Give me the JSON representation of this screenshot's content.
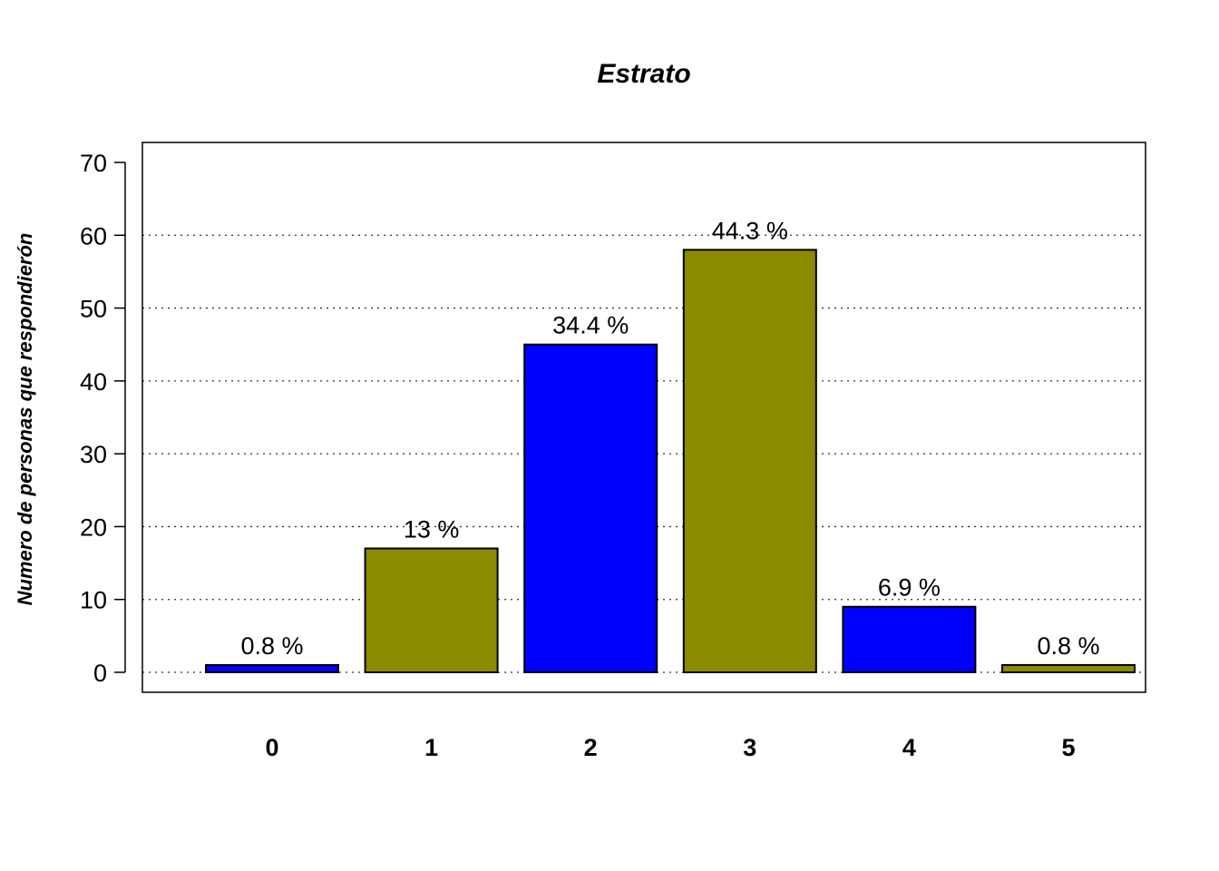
{
  "chart_data": {
    "type": "bar",
    "title": "Estrato",
    "xlabel": "",
    "ylabel": "Numero de personas que respondierón",
    "categories": [
      "0",
      "1",
      "2",
      "3",
      "4",
      "5"
    ],
    "values": [
      1,
      17,
      45,
      58,
      9,
      1
    ],
    "data_labels": [
      "0.8 %",
      "13 %",
      "34.4 %",
      "44.3 %",
      "6.9 %",
      "0.8 %"
    ],
    "colors": [
      "#0000FF",
      "#8B8B00",
      "#0000FF",
      "#8B8B00",
      "#0000FF",
      "#8B8B00"
    ],
    "ylim": [
      0,
      70
    ],
    "yticks": [
      0,
      10,
      20,
      30,
      40,
      50,
      60,
      70
    ],
    "grid": "horizontal dotted",
    "legend": "none"
  }
}
